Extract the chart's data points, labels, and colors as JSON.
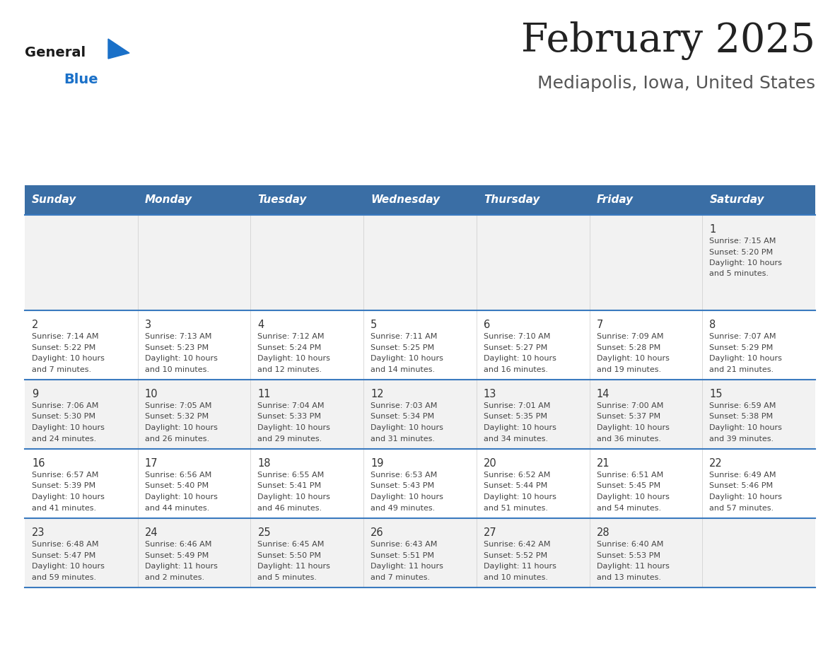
{
  "title": "February 2025",
  "subtitle": "Mediapolis, Iowa, United States",
  "days_of_week": [
    "Sunday",
    "Monday",
    "Tuesday",
    "Wednesday",
    "Thursday",
    "Friday",
    "Saturday"
  ],
  "header_bg": "#3a6ea5",
  "header_text_color": "#ffffff",
  "cell_bg_row0": "#f2f2f2",
  "cell_bg_row1": "#ffffff",
  "cell_bg_row2": "#f2f2f2",
  "cell_bg_row3": "#ffffff",
  "cell_bg_row4": "#f2f2f2",
  "cell_text_color": "#444444",
  "day_number_color": "#333333",
  "divider_color": "#3a7abf",
  "title_color": "#222222",
  "subtitle_color": "#555555",
  "logo_general_color": "#1a1a1a",
  "logo_blue_color": "#1a70c8",
  "calendar_data": [
    {
      "day": 1,
      "col": 6,
      "row": 0,
      "sunrise": "7:15 AM",
      "sunset": "5:20 PM",
      "daylight_hours": 10,
      "daylight_minutes": 5
    },
    {
      "day": 2,
      "col": 0,
      "row": 1,
      "sunrise": "7:14 AM",
      "sunset": "5:22 PM",
      "daylight_hours": 10,
      "daylight_minutes": 7
    },
    {
      "day": 3,
      "col": 1,
      "row": 1,
      "sunrise": "7:13 AM",
      "sunset": "5:23 PM",
      "daylight_hours": 10,
      "daylight_minutes": 10
    },
    {
      "day": 4,
      "col": 2,
      "row": 1,
      "sunrise": "7:12 AM",
      "sunset": "5:24 PM",
      "daylight_hours": 10,
      "daylight_minutes": 12
    },
    {
      "day": 5,
      "col": 3,
      "row": 1,
      "sunrise": "7:11 AM",
      "sunset": "5:25 PM",
      "daylight_hours": 10,
      "daylight_minutes": 14
    },
    {
      "day": 6,
      "col": 4,
      "row": 1,
      "sunrise": "7:10 AM",
      "sunset": "5:27 PM",
      "daylight_hours": 10,
      "daylight_minutes": 16
    },
    {
      "day": 7,
      "col": 5,
      "row": 1,
      "sunrise": "7:09 AM",
      "sunset": "5:28 PM",
      "daylight_hours": 10,
      "daylight_minutes": 19
    },
    {
      "day": 8,
      "col": 6,
      "row": 1,
      "sunrise": "7:07 AM",
      "sunset": "5:29 PM",
      "daylight_hours": 10,
      "daylight_minutes": 21
    },
    {
      "day": 9,
      "col": 0,
      "row": 2,
      "sunrise": "7:06 AM",
      "sunset": "5:30 PM",
      "daylight_hours": 10,
      "daylight_minutes": 24
    },
    {
      "day": 10,
      "col": 1,
      "row": 2,
      "sunrise": "7:05 AM",
      "sunset": "5:32 PM",
      "daylight_hours": 10,
      "daylight_minutes": 26
    },
    {
      "day": 11,
      "col": 2,
      "row": 2,
      "sunrise": "7:04 AM",
      "sunset": "5:33 PM",
      "daylight_hours": 10,
      "daylight_minutes": 29
    },
    {
      "day": 12,
      "col": 3,
      "row": 2,
      "sunrise": "7:03 AM",
      "sunset": "5:34 PM",
      "daylight_hours": 10,
      "daylight_minutes": 31
    },
    {
      "day": 13,
      "col": 4,
      "row": 2,
      "sunrise": "7:01 AM",
      "sunset": "5:35 PM",
      "daylight_hours": 10,
      "daylight_minutes": 34
    },
    {
      "day": 14,
      "col": 5,
      "row": 2,
      "sunrise": "7:00 AM",
      "sunset": "5:37 PM",
      "daylight_hours": 10,
      "daylight_minutes": 36
    },
    {
      "day": 15,
      "col": 6,
      "row": 2,
      "sunrise": "6:59 AM",
      "sunset": "5:38 PM",
      "daylight_hours": 10,
      "daylight_minutes": 39
    },
    {
      "day": 16,
      "col": 0,
      "row": 3,
      "sunrise": "6:57 AM",
      "sunset": "5:39 PM",
      "daylight_hours": 10,
      "daylight_minutes": 41
    },
    {
      "day": 17,
      "col": 1,
      "row": 3,
      "sunrise": "6:56 AM",
      "sunset": "5:40 PM",
      "daylight_hours": 10,
      "daylight_minutes": 44
    },
    {
      "day": 18,
      "col": 2,
      "row": 3,
      "sunrise": "6:55 AM",
      "sunset": "5:41 PM",
      "daylight_hours": 10,
      "daylight_minutes": 46
    },
    {
      "day": 19,
      "col": 3,
      "row": 3,
      "sunrise": "6:53 AM",
      "sunset": "5:43 PM",
      "daylight_hours": 10,
      "daylight_minutes": 49
    },
    {
      "day": 20,
      "col": 4,
      "row": 3,
      "sunrise": "6:52 AM",
      "sunset": "5:44 PM",
      "daylight_hours": 10,
      "daylight_minutes": 51
    },
    {
      "day": 21,
      "col": 5,
      "row": 3,
      "sunrise": "6:51 AM",
      "sunset": "5:45 PM",
      "daylight_hours": 10,
      "daylight_minutes": 54
    },
    {
      "day": 22,
      "col": 6,
      "row": 3,
      "sunrise": "6:49 AM",
      "sunset": "5:46 PM",
      "daylight_hours": 10,
      "daylight_minutes": 57
    },
    {
      "day": 23,
      "col": 0,
      "row": 4,
      "sunrise": "6:48 AM",
      "sunset": "5:47 PM",
      "daylight_hours": 10,
      "daylight_minutes": 59
    },
    {
      "day": 24,
      "col": 1,
      "row": 4,
      "sunrise": "6:46 AM",
      "sunset": "5:49 PM",
      "daylight_hours": 11,
      "daylight_minutes": 2
    },
    {
      "day": 25,
      "col": 2,
      "row": 4,
      "sunrise": "6:45 AM",
      "sunset": "5:50 PM",
      "daylight_hours": 11,
      "daylight_minutes": 5
    },
    {
      "day": 26,
      "col": 3,
      "row": 4,
      "sunrise": "6:43 AM",
      "sunset": "5:51 PM",
      "daylight_hours": 11,
      "daylight_minutes": 7
    },
    {
      "day": 27,
      "col": 4,
      "row": 4,
      "sunrise": "6:42 AM",
      "sunset": "5:52 PM",
      "daylight_hours": 11,
      "daylight_minutes": 10
    },
    {
      "day": 28,
      "col": 5,
      "row": 4,
      "sunrise": "6:40 AM",
      "sunset": "5:53 PM",
      "daylight_hours": 11,
      "daylight_minutes": 13
    }
  ]
}
